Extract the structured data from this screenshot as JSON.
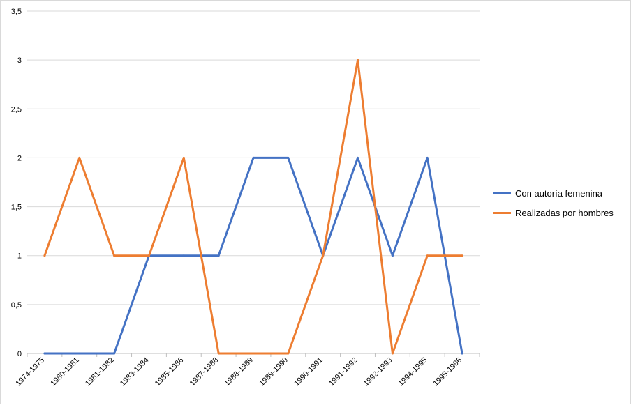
{
  "chart_data": {
    "type": "line",
    "categories": [
      "1974-1975",
      "1980-1981",
      "1981-1982",
      "1983-1984",
      "1985-1986",
      "1987-1988",
      "1988-1989",
      "1989-1990",
      "1990-1991",
      "1991-1992",
      "1992-1993",
      "1994-1995",
      "1995-1996"
    ],
    "series": [
      {
        "name": "Con autoría femenina",
        "color": "#4472c4",
        "values": [
          0,
          0,
          0,
          1,
          1,
          1,
          2,
          2,
          1,
          2,
          1,
          2,
          0
        ]
      },
      {
        "name": "Realizadas por hombres",
        "color": "#ed7d31",
        "values": [
          1,
          2,
          1,
          1,
          2,
          0,
          0,
          0,
          1,
          3,
          0,
          1,
          1
        ]
      }
    ],
    "ylim": [
      0,
      3.5
    ],
    "yticks": [
      "0",
      "0,5",
      "1",
      "1,5",
      "2",
      "2,5",
      "3",
      "3,5"
    ],
    "grid": true,
    "legend_position": "right",
    "title": "",
    "xlabel": "",
    "ylabel": ""
  }
}
